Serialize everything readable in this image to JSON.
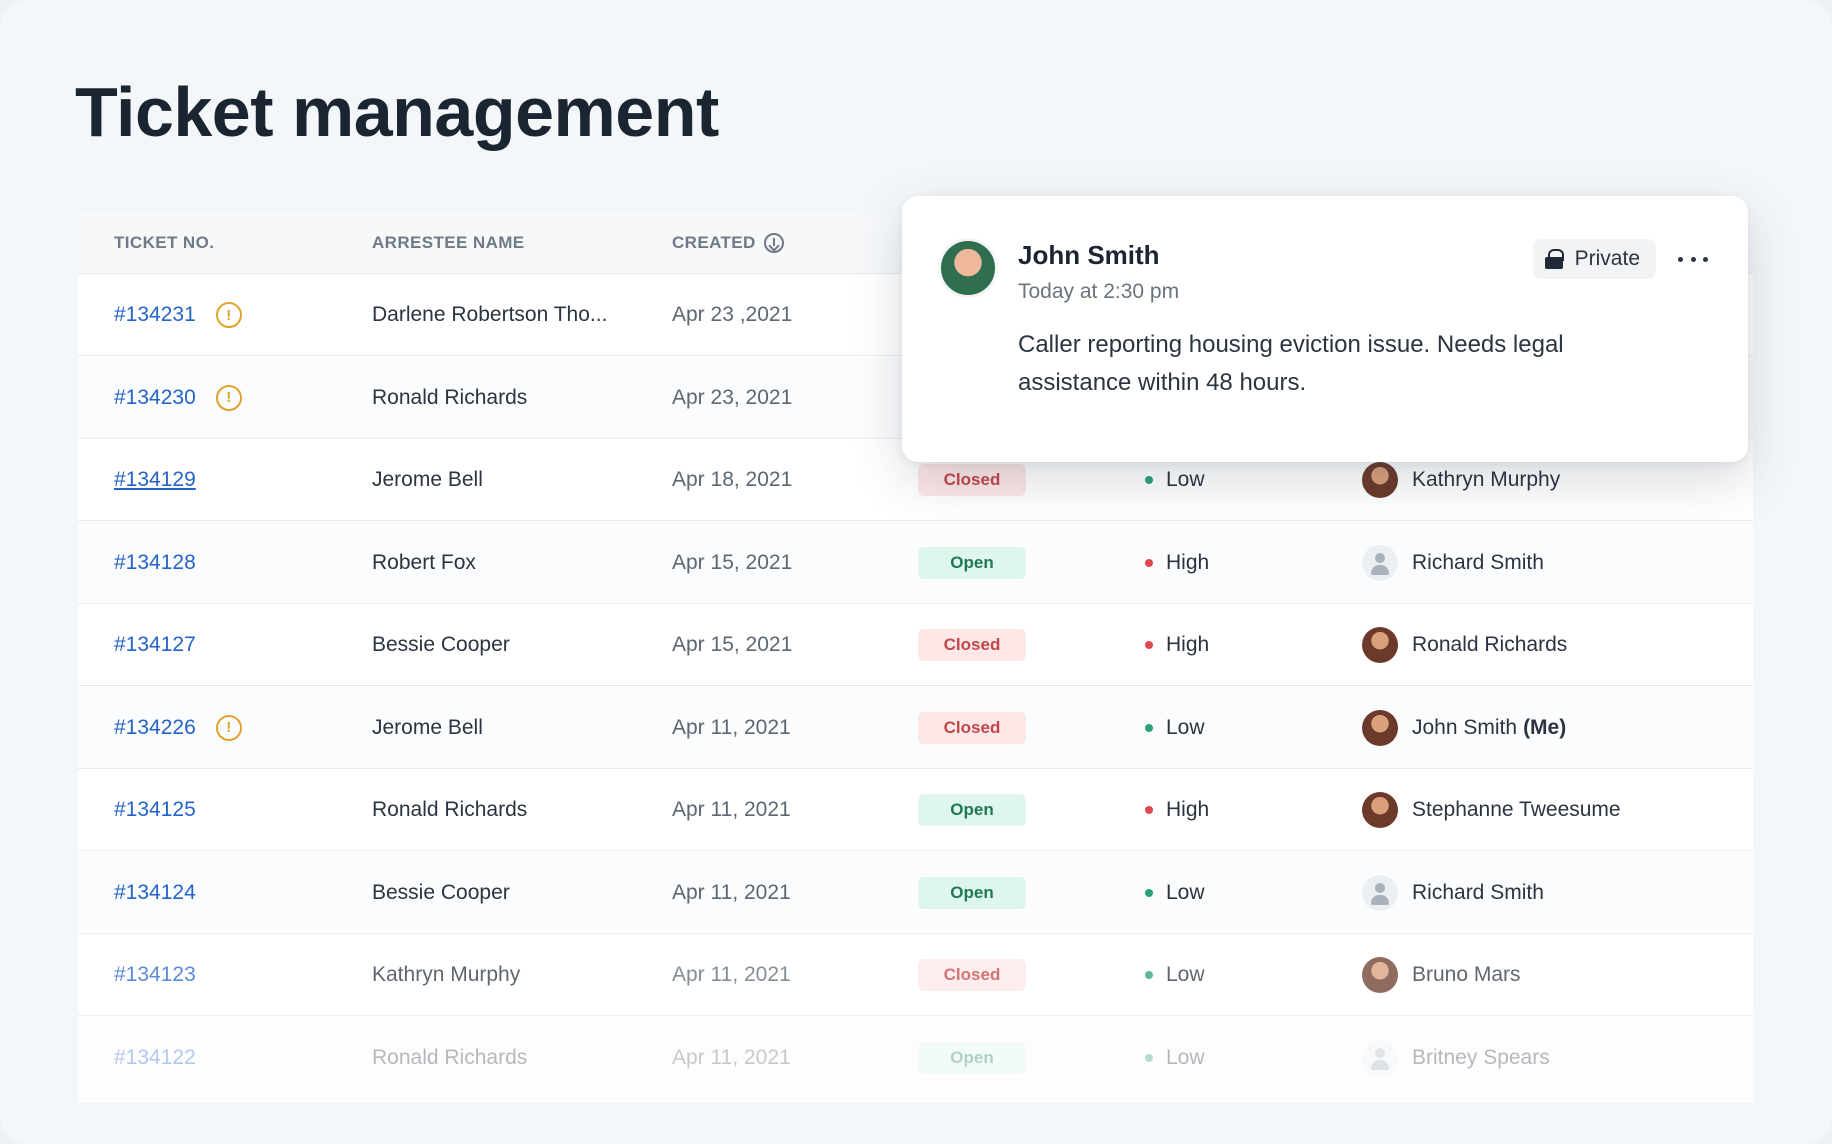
{
  "page": {
    "title": "Ticket management"
  },
  "table": {
    "columns": {
      "ticket": "TICKET NO.",
      "name": "ARRESTEE NAME",
      "created": "CREATED"
    },
    "rows": [
      {
        "ticket": "#134231",
        "warning": true,
        "name": "Darlene Robertson Tho...",
        "created": "Apr 23 ,2021",
        "status": "",
        "status_kind": "",
        "priority": "",
        "priority_kind": "",
        "assignee": "",
        "avatar": ""
      },
      {
        "ticket": "#134230",
        "warning": true,
        "name": "Ronald Richards",
        "created": "Apr 23, 2021",
        "status": "",
        "status_kind": "",
        "priority": "",
        "priority_kind": "",
        "assignee": "",
        "avatar": ""
      },
      {
        "ticket": "#134129",
        "warning": false,
        "name": "Jerome Bell",
        "created": "Apr 18, 2021",
        "status": "Closed",
        "status_kind": "closed",
        "priority": "Low",
        "priority_kind": "low",
        "assignee": "Kathryn Murphy",
        "avatar": "person"
      },
      {
        "ticket": "#134128",
        "warning": false,
        "name": "Robert Fox",
        "created": "Apr 15, 2021",
        "status": "Open",
        "status_kind": "open",
        "priority": "High",
        "priority_kind": "high",
        "assignee": "Richard Smith",
        "avatar": "placeholder"
      },
      {
        "ticket": "#134127",
        "warning": false,
        "name": "Bessie Cooper",
        "created": "Apr 15, 2021",
        "status": "Closed",
        "status_kind": "closed",
        "priority": "High",
        "priority_kind": "high",
        "assignee": "Ronald Richards",
        "avatar": "person"
      },
      {
        "ticket": "#134226",
        "warning": true,
        "name": "Jerome Bell",
        "created": "Apr 11, 2021",
        "status": "Closed",
        "status_kind": "closed",
        "priority": "Low",
        "priority_kind": "low",
        "assignee": "John Smith",
        "assignee_suffix": "(Me)",
        "avatar": "person"
      },
      {
        "ticket": "#134125",
        "warning": false,
        "name": "Ronald Richards",
        "created": "Apr 11, 2021",
        "status": "Open",
        "status_kind": "open",
        "priority": "High",
        "priority_kind": "high",
        "assignee": "Stephanne Tweesume",
        "avatar": "person"
      },
      {
        "ticket": "#134124",
        "warning": false,
        "name": "Bessie Cooper",
        "created": "Apr 11, 2021",
        "status": "Open",
        "status_kind": "open",
        "priority": "Low",
        "priority_kind": "low",
        "assignee": "Richard Smith",
        "avatar": "placeholder"
      },
      {
        "ticket": "#134123",
        "warning": false,
        "name": "Kathryn Murphy",
        "created": "Apr 11, 2021",
        "status": "Closed",
        "status_kind": "closed",
        "priority": "Low",
        "priority_kind": "low",
        "assignee": "Bruno Mars",
        "avatar": "person"
      },
      {
        "ticket": "#134122",
        "warning": false,
        "name": "Ronald Richards",
        "created": "Apr 11, 2021",
        "status": "Open",
        "status_kind": "open",
        "priority": "Low",
        "priority_kind": "low",
        "assignee": "Britney Spears",
        "avatar": "placeholder"
      }
    ],
    "warning_glyph": "!",
    "sort_icon": "arrow-down-circle-icon"
  },
  "note_card": {
    "author": "John Smith",
    "time": "Today at 2:30 pm",
    "visibility_label": "Private",
    "visibility_icon": "lock-icon",
    "menu_icon": "more-horizontal-icon",
    "body": "Caller reporting housing eviction issue. Needs legal assistance within 48 hours."
  },
  "colors": {
    "link": "#2563c9",
    "warning": "#e0a32e",
    "closed_bg": "#fde7e7",
    "closed_text": "#c2474a",
    "open_bg": "#def6ec",
    "open_text": "#1f7a58",
    "priority_low": "#2aa17b",
    "priority_high": "#e0484f"
  }
}
